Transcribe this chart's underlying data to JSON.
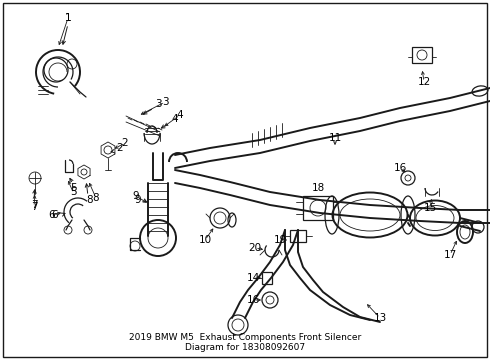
{
  "background_color": "#ffffff",
  "border_color": "#000000",
  "text_color": "#000000",
  "figsize": [
    4.9,
    3.6
  ],
  "dpi": 100,
  "subtitle_lines": [
    "2019 BMW M5  Exhaust Components Front Silencer",
    "Diagram for 18308092607"
  ],
  "font_size_labels": 7.5,
  "font_size_subtitle": 6.5,
  "lc": "#1a1a1a",
  "lw_main": 1.4,
  "lw_med": 0.9,
  "lw_thin": 0.6
}
